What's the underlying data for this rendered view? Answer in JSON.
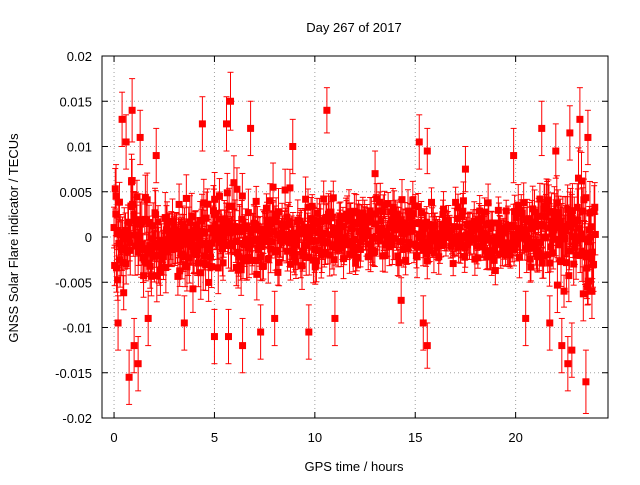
{
  "chart_data": {
    "type": "scatter",
    "title": "Day 267 of 2017",
    "xlabel": "GPS time / hours",
    "ylabel": "GNSS Solar Flare indicator / TECUs",
    "xlim": [
      -0.6,
      24.6
    ],
    "ylim": [
      -0.02,
      0.02
    ],
    "x_ticks": [
      0,
      5,
      10,
      15,
      20
    ],
    "y_ticks": [
      -0.02,
      -0.015,
      -0.01,
      -0.005,
      0,
      0.005,
      0.01,
      0.015,
      0.02
    ],
    "x_tick_labels": [
      "0",
      "5",
      "10",
      "15",
      "20"
    ],
    "y_tick_labels": [
      "-0.02",
      "-0.015",
      "-0.01",
      "-0.005",
      "0",
      "0.005",
      "0.01",
      "0.015",
      "0.02"
    ],
    "grid": true,
    "legend": "none",
    "series_color": "#ff0000",
    "series": [
      {
        "marker": "square",
        "error_bars": true,
        "points": [
          {
            "x": 0.1,
            "y": 0.0045,
            "err": 0.0035
          },
          {
            "x": 0.2,
            "y": -0.0095,
            "err": 0.003
          },
          {
            "x": 0.4,
            "y": 0.013,
            "err": 0.003
          },
          {
            "x": 0.6,
            "y": 0.0105,
            "err": 0.003
          },
          {
            "x": 0.75,
            "y": -0.0155,
            "err": 0.003
          },
          {
            "x": 0.9,
            "y": 0.014,
            "err": 0.0035
          },
          {
            "x": 1.0,
            "y": -0.012,
            "err": 0.003
          },
          {
            "x": 1.2,
            "y": -0.014,
            "err": 0.003
          },
          {
            "x": 1.3,
            "y": 0.011,
            "err": 0.003
          },
          {
            "x": 1.7,
            "y": -0.009,
            "err": 0.003
          },
          {
            "x": 2.1,
            "y": 0.009,
            "err": 0.003
          },
          {
            "x": 3.5,
            "y": -0.0095,
            "err": 0.003
          },
          {
            "x": 4.4,
            "y": 0.0125,
            "err": 0.003
          },
          {
            "x": 5.0,
            "y": -0.011,
            "err": 0.003
          },
          {
            "x": 5.6,
            "y": 0.0125,
            "err": 0.003
          },
          {
            "x": 5.7,
            "y": -0.011,
            "err": 0.003
          },
          {
            "x": 5.8,
            "y": 0.015,
            "err": 0.0032
          },
          {
            "x": 6.4,
            "y": -0.012,
            "err": 0.003
          },
          {
            "x": 6.8,
            "y": 0.012,
            "err": 0.003
          },
          {
            "x": 7.3,
            "y": -0.0105,
            "err": 0.003
          },
          {
            "x": 8.0,
            "y": -0.009,
            "err": 0.003
          },
          {
            "x": 8.9,
            "y": 0.01,
            "err": 0.003
          },
          {
            "x": 9.7,
            "y": -0.0105,
            "err": 0.003
          },
          {
            "x": 10.6,
            "y": 0.014,
            "err": 0.0025
          },
          {
            "x": 11.0,
            "y": -0.009,
            "err": 0.003
          },
          {
            "x": 13.0,
            "y": 0.007,
            "err": 0.0025
          },
          {
            "x": 14.3,
            "y": -0.007,
            "err": 0.0025
          },
          {
            "x": 15.2,
            "y": 0.0105,
            "err": 0.003
          },
          {
            "x": 15.4,
            "y": -0.0095,
            "err": 0.003
          },
          {
            "x": 15.6,
            "y": -0.012,
            "err": 0.0025
          },
          {
            "x": 15.6,
            "y": 0.0095,
            "err": 0.0025
          },
          {
            "x": 17.5,
            "y": 0.0075,
            "err": 0.0025
          },
          {
            "x": 19.9,
            "y": 0.009,
            "err": 0.003
          },
          {
            "x": 20.5,
            "y": -0.009,
            "err": 0.003
          },
          {
            "x": 21.3,
            "y": 0.012,
            "err": 0.003
          },
          {
            "x": 21.7,
            "y": -0.0095,
            "err": 0.003
          },
          {
            "x": 22.0,
            "y": 0.0095,
            "err": 0.003
          },
          {
            "x": 22.3,
            "y": -0.012,
            "err": 0.003
          },
          {
            "x": 22.6,
            "y": -0.014,
            "err": 0.003
          },
          {
            "x": 22.7,
            "y": 0.0115,
            "err": 0.003
          },
          {
            "x": 22.8,
            "y": -0.0125,
            "err": 0.003
          },
          {
            "x": 23.2,
            "y": 0.013,
            "err": 0.0035
          },
          {
            "x": 23.5,
            "y": -0.016,
            "err": 0.0035
          },
          {
            "x": 23.6,
            "y": 0.011,
            "err": 0.003
          },
          {
            "x": 23.8,
            "y": -0.006,
            "err": 0.003
          }
        ],
        "dense_band": {
          "x_start": 0.0,
          "x_end": 24.0,
          "x_step": 0.03,
          "profile": [
            {
              "x": 0,
              "center": 0.0,
              "halfwidth": 0.0085,
              "err": 0.0028
            },
            {
              "x": 3,
              "center": 0.0,
              "halfwidth": 0.0065,
              "err": 0.0025
            },
            {
              "x": 6,
              "center": 0.0,
              "halfwidth": 0.007,
              "err": 0.0025
            },
            {
              "x": 9,
              "center": 0.0005,
              "halfwidth": 0.0055,
              "err": 0.0022
            },
            {
              "x": 12,
              "center": 0.0005,
              "halfwidth": 0.005,
              "err": 0.002
            },
            {
              "x": 15,
              "center": 0.0005,
              "halfwidth": 0.005,
              "err": 0.002
            },
            {
              "x": 18,
              "center": 0.0003,
              "halfwidth": 0.004,
              "err": 0.0018
            },
            {
              "x": 20,
              "center": 0.0,
              "halfwidth": 0.005,
              "err": 0.002
            },
            {
              "x": 22,
              "center": 0.0,
              "halfwidth": 0.0075,
              "err": 0.0028
            },
            {
              "x": 24,
              "center": 0.0,
              "halfwidth": 0.009,
              "err": 0.003
            }
          ]
        }
      }
    ]
  }
}
